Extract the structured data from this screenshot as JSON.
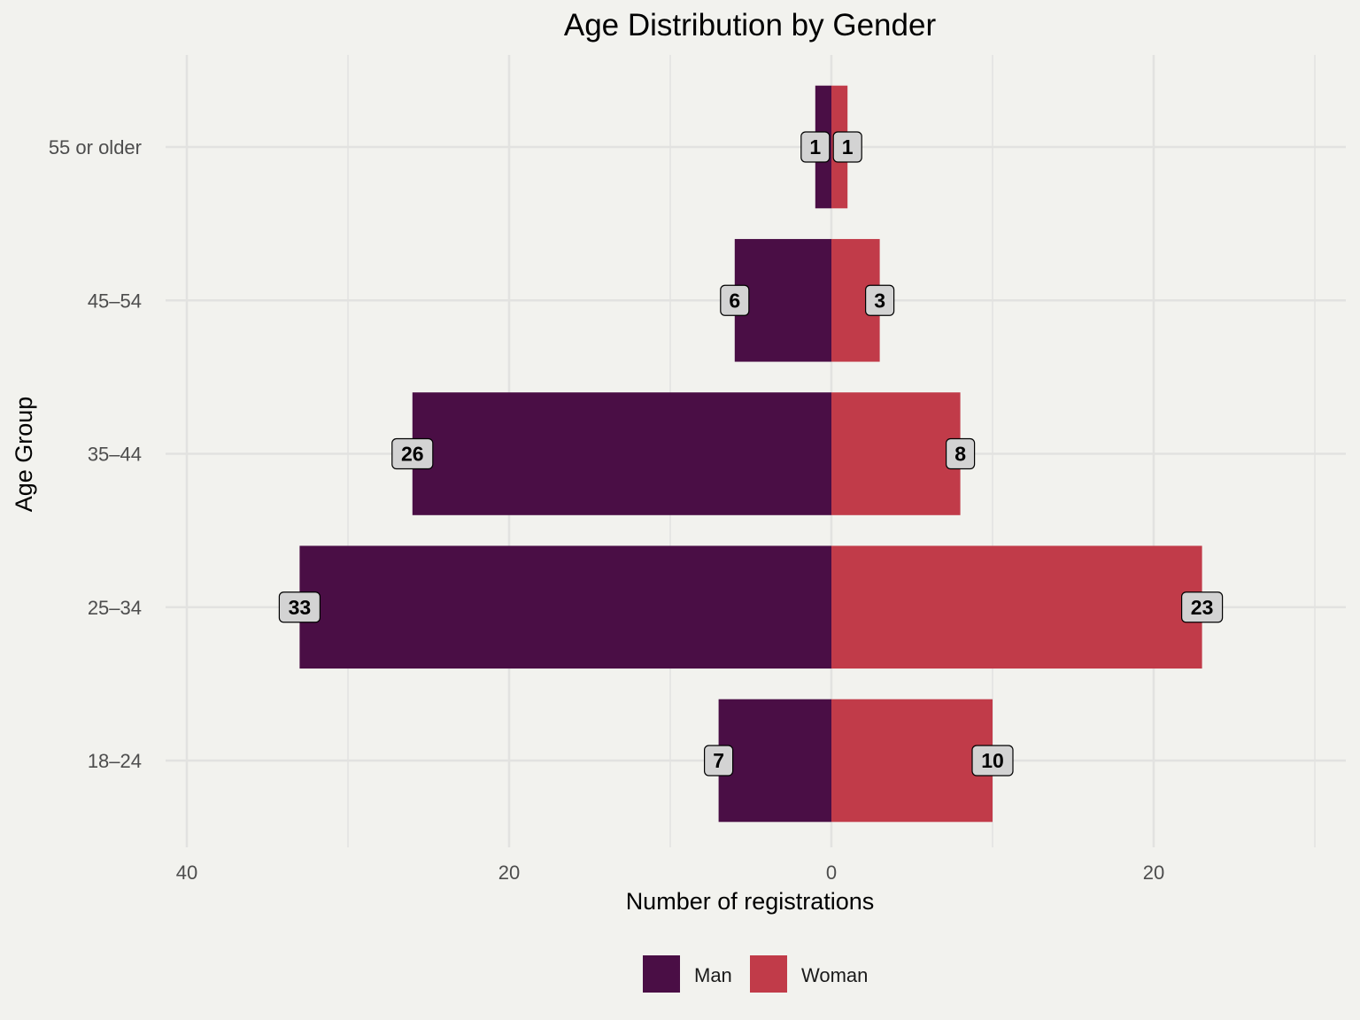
{
  "chart_data": {
    "type": "bar",
    "orientation": "horizontal",
    "layout": "diverging (population pyramid)",
    "title": "Age Distribution by Gender",
    "xlabel": "Number of registrations",
    "ylabel": "Age Group",
    "categories": [
      "18–24",
      "25–34",
      "35–44",
      "45–54",
      "55 or older"
    ],
    "series": [
      {
        "name": "Man",
        "side": "left",
        "color": "#4a0e45",
        "values": [
          7,
          33,
          26,
          6,
          1
        ]
      },
      {
        "name": "Woman",
        "side": "right",
        "color": "#c13b49",
        "values": [
          10,
          23,
          8,
          3,
          1
        ]
      }
    ],
    "xlim": [
      -40,
      30
    ],
    "x_ticks": [
      {
        "value": -40,
        "label": "40"
      },
      {
        "value": -20,
        "label": "20"
      },
      {
        "value": 0,
        "label": "0"
      },
      {
        "value": 20,
        "label": "20"
      }
    ],
    "x_minor_gridlines": [
      -30,
      -10,
      10,
      30
    ],
    "grid": true,
    "legend": {
      "position": "bottom",
      "entries": [
        "Man",
        "Woman"
      ]
    },
    "data_labels": true,
    "colors": {
      "background": "#f2f2ee",
      "gridline": "#e2e2e0",
      "label_box_fill": "#d3d3d3",
      "label_box_stroke": "#000000"
    }
  }
}
